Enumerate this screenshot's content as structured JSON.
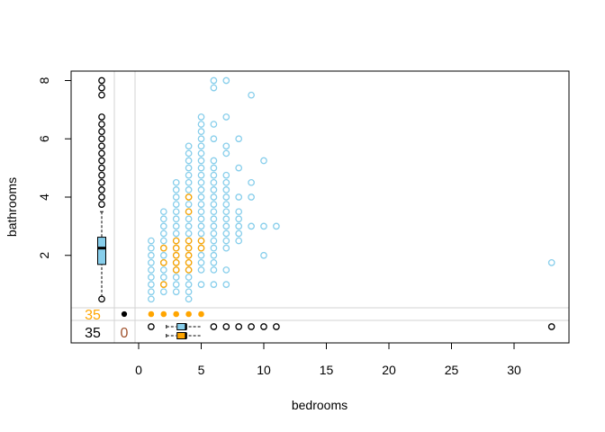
{
  "chart_data": {
    "type": "scatter",
    "title": "",
    "xlabel": "bedrooms",
    "ylabel": "bathrooms",
    "xlim": [
      -5.3,
      34.0
    ],
    "ylim": [
      0.5,
      8.0
    ],
    "x_ticks": [
      0,
      5,
      10,
      15,
      20,
      25,
      30
    ],
    "y_ticks": [
      2,
      4,
      6,
      8
    ],
    "grid": false,
    "colors": {
      "complete": "#87ceeb",
      "imputed": "#ffa500",
      "missing_marginal": "#000000",
      "box_fill_complete": "#87ceeb",
      "box_fill_imputed": "#ffa500"
    },
    "missing_counts": {
      "bathrooms_imputed": "35",
      "bathrooms_missing": "35",
      "bedrooms_missing": "0"
    },
    "series": [
      {
        "name": "",
        "color": "#87ceeb",
        "points": [
          [
            1,
            0.5
          ],
          [
            1,
            0.75
          ],
          [
            1,
            1
          ],
          [
            1,
            1.25
          ],
          [
            1,
            1.5
          ],
          [
            1,
            1.75
          ],
          [
            1,
            2
          ],
          [
            1,
            2.25
          ],
          [
            1,
            2.5
          ],
          [
            2,
            0.75
          ],
          [
            2,
            1
          ],
          [
            2,
            1.25
          ],
          [
            2,
            1.5
          ],
          [
            2,
            1.75
          ],
          [
            2,
            2
          ],
          [
            2,
            2.25
          ],
          [
            2,
            2.5
          ],
          [
            2,
            2.75
          ],
          [
            2,
            3
          ],
          [
            2,
            3.25
          ],
          [
            2,
            3.5
          ],
          [
            3,
            0.75
          ],
          [
            3,
            1
          ],
          [
            3,
            1.25
          ],
          [
            3,
            1.5
          ],
          [
            3,
            1.75
          ],
          [
            3,
            2
          ],
          [
            3,
            2.25
          ],
          [
            3,
            2.5
          ],
          [
            3,
            2.75
          ],
          [
            3,
            3
          ],
          [
            3,
            3.25
          ],
          [
            3,
            3.5
          ],
          [
            3,
            3.75
          ],
          [
            3,
            4
          ],
          [
            3,
            4.25
          ],
          [
            3,
            4.5
          ],
          [
            4,
            0.5
          ],
          [
            4,
            0.75
          ],
          [
            4,
            1
          ],
          [
            4,
            1.25
          ],
          [
            4,
            1.5
          ],
          [
            4,
            1.75
          ],
          [
            4,
            2
          ],
          [
            4,
            2.25
          ],
          [
            4,
            2.5
          ],
          [
            4,
            2.75
          ],
          [
            4,
            3
          ],
          [
            4,
            3.25
          ],
          [
            4,
            3.5
          ],
          [
            4,
            3.75
          ],
          [
            4,
            4
          ],
          [
            4,
            4.25
          ],
          [
            4,
            4.5
          ],
          [
            4,
            4.75
          ],
          [
            4,
            5
          ],
          [
            4,
            5.25
          ],
          [
            4,
            5.5
          ],
          [
            4,
            5.75
          ],
          [
            5,
            1
          ],
          [
            5,
            1.5
          ],
          [
            5,
            1.75
          ],
          [
            5,
            2
          ],
          [
            5,
            2.25
          ],
          [
            5,
            2.5
          ],
          [
            5,
            2.75
          ],
          [
            5,
            3
          ],
          [
            5,
            3.25
          ],
          [
            5,
            3.5
          ],
          [
            5,
            3.75
          ],
          [
            5,
            4
          ],
          [
            5,
            4.25
          ],
          [
            5,
            4.5
          ],
          [
            5,
            4.75
          ],
          [
            5,
            5
          ],
          [
            5,
            5.25
          ],
          [
            5,
            5.5
          ],
          [
            5,
            5.75
          ],
          [
            5,
            6
          ],
          [
            5,
            6.25
          ],
          [
            5,
            6.5
          ],
          [
            5,
            6.75
          ],
          [
            6,
            1
          ],
          [
            6,
            1.5
          ],
          [
            6,
            1.75
          ],
          [
            6,
            2
          ],
          [
            6,
            2.25
          ],
          [
            6,
            2.5
          ],
          [
            6,
            2.75
          ],
          [
            6,
            3
          ],
          [
            6,
            3.25
          ],
          [
            6,
            3.5
          ],
          [
            6,
            3.75
          ],
          [
            6,
            4
          ],
          [
            6,
            4.25
          ],
          [
            6,
            4.5
          ],
          [
            6,
            4.75
          ],
          [
            6,
            5
          ],
          [
            6,
            5.25
          ],
          [
            6,
            6
          ],
          [
            6,
            6.5
          ],
          [
            6,
            7.75
          ],
          [
            6,
            8
          ],
          [
            7,
            1
          ],
          [
            7,
            1.5
          ],
          [
            7,
            2.25
          ],
          [
            7,
            2.5
          ],
          [
            7,
            2.75
          ],
          [
            7,
            3
          ],
          [
            7,
            3.25
          ],
          [
            7,
            3.5
          ],
          [
            7,
            3.75
          ],
          [
            7,
            4
          ],
          [
            7,
            4.25
          ],
          [
            7,
            4.5
          ],
          [
            7,
            4.75
          ],
          [
            7,
            5.5
          ],
          [
            7,
            5.75
          ],
          [
            7,
            6.75
          ],
          [
            7,
            8
          ],
          [
            8,
            2.5
          ],
          [
            8,
            2.75
          ],
          [
            8,
            3
          ],
          [
            8,
            3.25
          ],
          [
            8,
            3.5
          ],
          [
            8,
            4
          ],
          [
            8,
            5
          ],
          [
            8,
            6
          ],
          [
            9,
            3
          ],
          [
            9,
            4
          ],
          [
            9,
            4.5
          ],
          [
            9,
            7.5
          ],
          [
            10,
            2
          ],
          [
            10,
            3
          ],
          [
            10,
            5.25
          ],
          [
            11,
            3
          ],
          [
            33,
            1.75
          ]
        ]
      },
      {
        "name": "",
        "color": "#ffa500",
        "points": [
          [
            2,
            1
          ],
          [
            2,
            1.75
          ],
          [
            2,
            2.25
          ],
          [
            3,
            1.5
          ],
          [
            3,
            1.75
          ],
          [
            3,
            2
          ],
          [
            3,
            2.25
          ],
          [
            3,
            2.5
          ],
          [
            4,
            1.5
          ],
          [
            4,
            1.75
          ],
          [
            4,
            2
          ],
          [
            4,
            2.25
          ],
          [
            4,
            2.5
          ],
          [
            4,
            3.5
          ],
          [
            4,
            4
          ],
          [
            5,
            2.25
          ],
          [
            5,
            2.5
          ]
        ]
      }
    ],
    "marginal_missing_x": [
      1,
      2,
      3,
      4,
      5
    ],
    "bottom_margin_points": [
      1,
      6,
      7,
      8,
      9,
      10,
      11,
      33
    ],
    "left_margin_points": [
      0.5,
      3.75,
      4,
      4.25,
      4.5,
      4.75,
      5,
      5.25,
      5.5,
      5.75,
      6,
      6.25,
      6.5,
      6.75,
      7.5,
      7.75,
      8
    ],
    "boxplot_bathrooms": {
      "whisker_low": 0.5,
      "q1": 1.75,
      "median": 2.25,
      "q3": 2.5,
      "whisker_high": 3.5
    },
    "boxplot_bedrooms_complete": {
      "whisker_low": 2,
      "q1": 3,
      "median": 4,
      "q3": 4,
      "whisker_high": 5
    },
    "boxplot_bedrooms_imputed": {
      "whisker_low": 2,
      "q1": 3,
      "median": 4,
      "q3": 4,
      "whisker_high": 5
    }
  }
}
